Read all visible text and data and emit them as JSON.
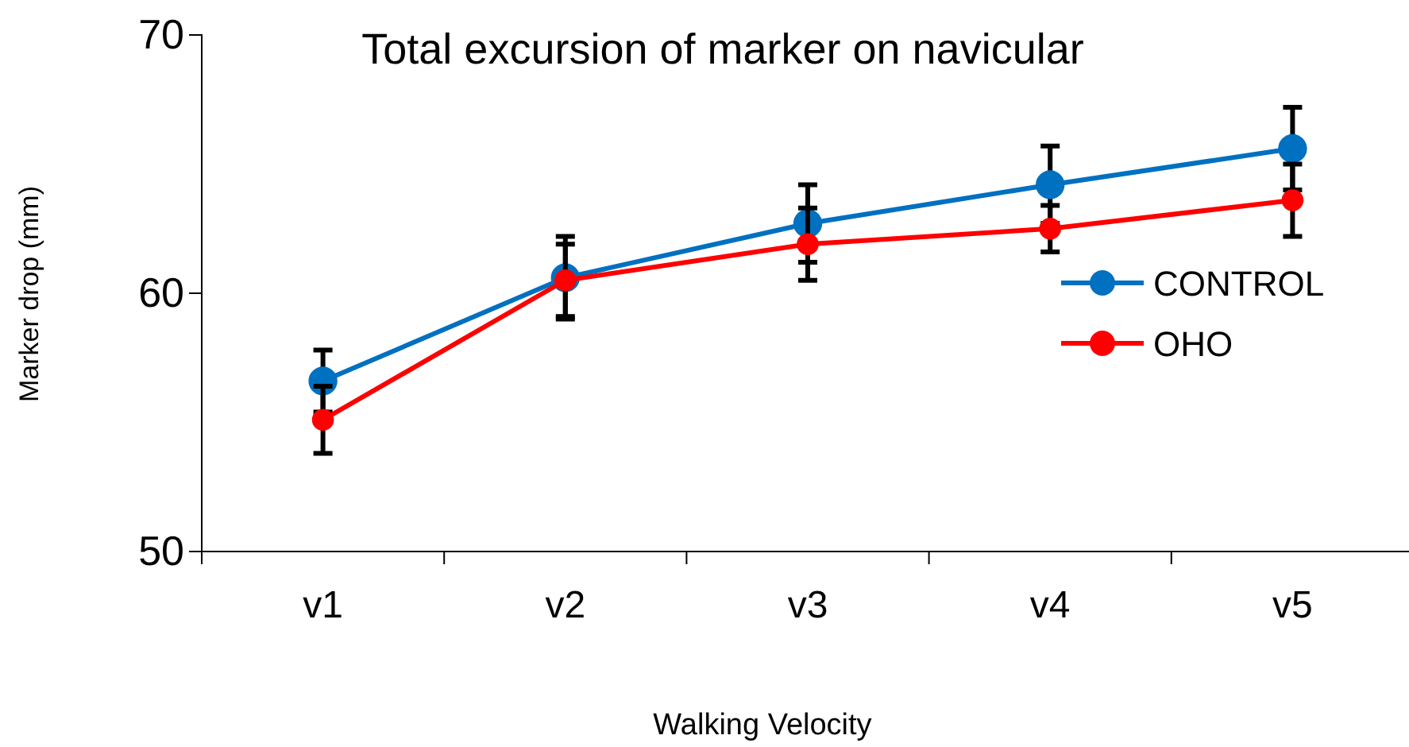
{
  "chart_data": {
    "type": "line",
    "title": "Total excursion of marker on navicular",
    "xlabel": "Walking Velocity",
    "ylabel": "Marker drop (mm)",
    "categories": [
      "v1",
      "v2",
      "v3",
      "v4",
      "v5"
    ],
    "series": [
      {
        "name": "CONTROL",
        "color": "#0070c0",
        "values": [
          56.6,
          60.6,
          62.7,
          64.2,
          65.6
        ],
        "errors": [
          1.2,
          1.6,
          1.5,
          1.5,
          1.6
        ]
      },
      {
        "name": "OHO",
        "color": "#ff0000",
        "values": [
          55.1,
          60.5,
          61.9,
          62.5,
          63.6
        ],
        "errors": [
          1.3,
          1.4,
          1.4,
          0.9,
          1.4
        ]
      }
    ],
    "ylim": [
      50,
      70
    ],
    "yticks": [
      50,
      60,
      70
    ],
    "marker": "circle",
    "legend": "right",
    "grid": false
  }
}
